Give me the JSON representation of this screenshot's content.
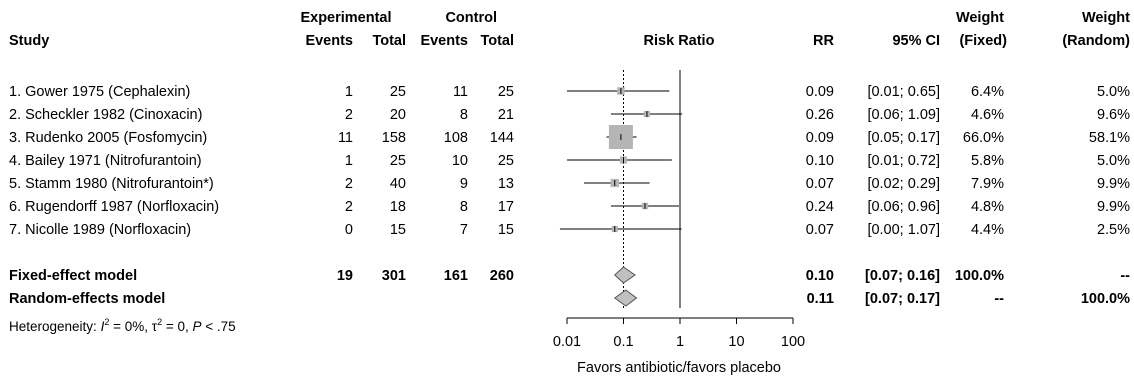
{
  "chart_data": {
    "type": "forest",
    "headers": {
      "study": "Study",
      "experimental": "Experimental",
      "control": "Control",
      "events": "Events",
      "total": "Total",
      "plot_title": "Risk Ratio",
      "rr": "RR",
      "ci": "95% CI",
      "weight": "Weight",
      "fixed": "(Fixed)",
      "random": "(Random)"
    },
    "studies": [
      {
        "name": "1. Gower 1975 (Cephalexin)",
        "exp_events": "1",
        "exp_total": "25",
        "ctrl_events": "11",
        "ctrl_total": "25",
        "rr_text": "0.09",
        "ci_text": "[0.01; 0.65]",
        "wf_text": "6.4%",
        "wr_text": "5.0%",
        "rr": 0.09,
        "lo": 0.01,
        "hi": 0.65,
        "weight_fixed": 6.4
      },
      {
        "name": "2. Scheckler 1982 (Cinoxacin)",
        "exp_events": "2",
        "exp_total": "20",
        "ctrl_events": "8",
        "ctrl_total": "21",
        "rr_text": "0.26",
        "ci_text": "[0.06; 1.09]",
        "wf_text": "4.6%",
        "wr_text": "9.6%",
        "rr": 0.26,
        "lo": 0.06,
        "hi": 1.09,
        "weight_fixed": 4.6
      },
      {
        "name": "3. Rudenko 2005 (Fosfomycin)",
        "exp_events": "11",
        "exp_total": "158",
        "ctrl_events": "108",
        "ctrl_total": "144",
        "rr_text": "0.09",
        "ci_text": "[0.05; 0.17]",
        "wf_text": "66.0%",
        "wr_text": "58.1%",
        "rr": 0.09,
        "lo": 0.05,
        "hi": 0.17,
        "weight_fixed": 66.0
      },
      {
        "name": "4. Bailey 1971 (Nitrofurantoin)",
        "exp_events": "1",
        "exp_total": "25",
        "ctrl_events": "10",
        "ctrl_total": "25",
        "rr_text": "0.10",
        "ci_text": "[0.01; 0.72]",
        "wf_text": "5.8%",
        "wr_text": "5.0%",
        "rr": 0.1,
        "lo": 0.01,
        "hi": 0.72,
        "weight_fixed": 5.8
      },
      {
        "name": "5. Stamm 1980 (Nitrofurantoin*)",
        "exp_events": "2",
        "exp_total": "40",
        "ctrl_events": "9",
        "ctrl_total": "13",
        "rr_text": "0.07",
        "ci_text": "[0.02; 0.29]",
        "wf_text": "7.9%",
        "wr_text": "9.9%",
        "rr": 0.07,
        "lo": 0.02,
        "hi": 0.29,
        "weight_fixed": 7.9
      },
      {
        "name": "6. Rugendorff 1987 (Norfloxacin)",
        "exp_events": "2",
        "exp_total": "18",
        "ctrl_events": "8",
        "ctrl_total": "17",
        "rr_text": "0.24",
        "ci_text": "[0.06; 0.96]",
        "wf_text": "4.8%",
        "wr_text": "9.9%",
        "rr": 0.24,
        "lo": 0.06,
        "hi": 0.96,
        "weight_fixed": 4.8
      },
      {
        "name": "7. Nicolle 1989 (Norfloxacin)",
        "exp_events": "0",
        "exp_total": "15",
        "ctrl_events": "7",
        "ctrl_total": "15",
        "rr_text": "0.07",
        "ci_text": "[0.00; 1.07]",
        "wf_text": "4.4%",
        "wr_text": "2.5%",
        "rr": 0.07,
        "lo": 0.004,
        "hi": 1.07,
        "weight_fixed": 4.4
      }
    ],
    "summaries": [
      {
        "name": "Fixed-effect model",
        "exp_events": "19",
        "exp_total": "301",
        "ctrl_events": "161",
        "ctrl_total": "260",
        "rr_text": "0.10",
        "ci_text": "[0.07; 0.16]",
        "wf_text": "100.0%",
        "wr_text": "--",
        "rr": 0.1,
        "lo": 0.07,
        "hi": 0.16
      },
      {
        "name": "Random-effects model",
        "exp_events": "",
        "exp_total": "",
        "ctrl_events": "",
        "ctrl_total": "",
        "rr_text": "0.11",
        "ci_text": "[0.07; 0.17]",
        "wf_text": "--",
        "wr_text": "100.0%",
        "rr": 0.11,
        "lo": 0.07,
        "hi": 0.17
      }
    ],
    "heterogeneity": {
      "prefix": "Heterogeneity: ",
      "i2_symbol": "I",
      "i2_value": " = 0%, ",
      "tau2_symbol": "τ",
      "tau2_value": " = 0, ",
      "p_symbol": "P",
      "p_value": " < .75"
    },
    "x_axis": {
      "scale": "log",
      "ticks": [
        0.01,
        0.1,
        1,
        10,
        100
      ],
      "tick_labels": [
        "0.01",
        "0.1",
        "1",
        "10",
        "100"
      ],
      "label": "Favors antibiotic/favors placebo",
      "null_line": 1,
      "summary_line": 0.1
    },
    "colors": {
      "square": "#b5b5b5",
      "diamond": "#c0c0c0",
      "line": "#000000"
    }
  }
}
